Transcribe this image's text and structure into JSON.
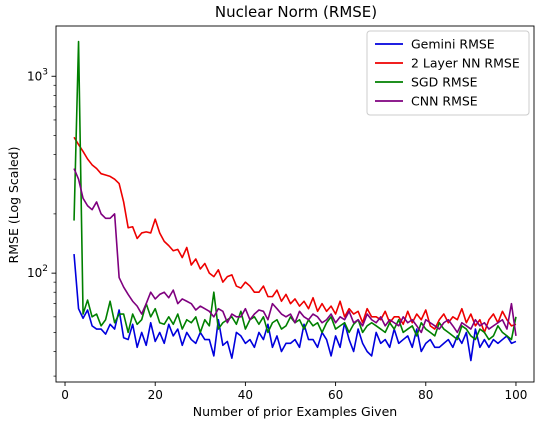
{
  "chart_data": {
    "type": "line",
    "title": "Nuclear Norm (RMSE)",
    "xlabel": "Number of prior Examples Given",
    "ylabel": "RMSE (Log Scaled)",
    "x_scale": "linear",
    "y_scale": "log",
    "xlim": [
      -2,
      104
    ],
    "ylim": [
      28,
      1800
    ],
    "x_ticks": [
      0,
      20,
      40,
      60,
      80,
      100
    ],
    "x_tick_labels": [
      "0",
      "20",
      "40",
      "60",
      "80",
      "100"
    ],
    "y_major_ticks": [
      100,
      1000
    ],
    "y_major_tick_labels": [
      "10",
      "10"
    ],
    "y_major_tick_exponents": [
      "2",
      "3"
    ],
    "y_minor_ticks": [
      30,
      40,
      50,
      60,
      70,
      80,
      90,
      200,
      300,
      400,
      500,
      600,
      700,
      800,
      900
    ],
    "grid": false,
    "legend_position": "top-right",
    "series": [
      {
        "name": "Gemini RMSE",
        "color": "#0000dd",
        "start_x": 2,
        "values": [
          125,
          66,
          59,
          65,
          54,
          52,
          52,
          49,
          55,
          52,
          65,
          47,
          46,
          55,
          42,
          50,
          43,
          56,
          45,
          50,
          44,
          55,
          48,
          52,
          43,
          50,
          46,
          44,
          50,
          46,
          46,
          38,
          58,
          43,
          45,
          37,
          50,
          48,
          44,
          46,
          42,
          50,
          46,
          55,
          42,
          48,
          40,
          44,
          44,
          46,
          42,
          55,
          46,
          46,
          42,
          50,
          46,
          38,
          48,
          42,
          56,
          46,
          40,
          52,
          44,
          40,
          38,
          50,
          44,
          46,
          42,
          52,
          44,
          46,
          48,
          42,
          52,
          40,
          44,
          46,
          42,
          42,
          44,
          46,
          42,
          48,
          44,
          50,
          36,
          52,
          42,
          46,
          42,
          46,
          44,
          46,
          48,
          44,
          45
        ]
      },
      {
        "name": "2 Layer NN RMSE",
        "color": "#ee0000",
        "start_x": 2,
        "values": [
          490,
          450,
          415,
          380,
          355,
          340,
          320,
          315,
          310,
          300,
          285,
          230,
          170,
          172,
          150,
          160,
          162,
          160,
          188,
          160,
          145,
          138,
          130,
          132,
          120,
          135,
          110,
          118,
          105,
          112,
          100,
          96,
          104,
          90,
          96,
          98,
          86,
          84,
          90,
          86,
          80,
          80,
          86,
          76,
          76,
          82,
          72,
          78,
          70,
          74,
          68,
          72,
          66,
          75,
          64,
          70,
          64,
          68,
          62,
          72,
          60,
          66,
          62,
          64,
          56,
          66,
          60,
          60,
          58,
          64,
          56,
          60,
          60,
          55,
          64,
          56,
          62,
          58,
          65,
          54,
          52,
          58,
          62,
          56,
          60,
          58,
          66,
          56,
          62,
          54,
          58,
          50,
          58,
          62,
          56,
          64,
          58,
          54,
          55
        ]
      },
      {
        "name": "SGD RMSE",
        "color": "#008000",
        "start_x": 2,
        "values": [
          185,
          1500,
          62,
          73,
          60,
          62,
          54,
          58,
          72,
          56,
          62,
          62,
          50,
          62,
          55,
          58,
          70,
          60,
          66,
          56,
          55,
          60,
          55,
          62,
          52,
          58,
          56,
          60,
          50,
          58,
          54,
          80,
          52,
          56,
          58,
          60,
          55,
          64,
          52,
          58,
          60,
          55,
          60,
          50,
          56,
          58,
          52,
          54,
          60,
          56,
          58,
          52,
          58,
          54,
          56,
          50,
          56,
          60,
          52,
          54,
          56,
          50,
          55,
          58,
          50,
          54,
          56,
          54,
          52,
          50,
          56,
          52,
          58,
          50,
          52,
          54,
          48,
          56,
          52,
          50,
          48,
          56,
          52,
          50,
          48,
          46,
          54,
          52,
          48,
          46,
          52,
          50,
          46,
          48,
          54,
          50,
          48,
          46,
          60
        ]
      },
      {
        "name": "CNN RMSE",
        "color": "#7f007f",
        "start_x": 2,
        "values": [
          340,
          300,
          240,
          220,
          210,
          230,
          200,
          190,
          190,
          200,
          95,
          85,
          78,
          72,
          68,
          62,
          70,
          80,
          74,
          78,
          80,
          75,
          82,
          70,
          74,
          72,
          70,
          65,
          68,
          66,
          64,
          60,
          66,
          64,
          56,
          62,
          60,
          60,
          66,
          58,
          62,
          65,
          64,
          58,
          70,
          66,
          62,
          60,
          62,
          56,
          64,
          60,
          58,
          62,
          60,
          56,
          58,
          62,
          56,
          60,
          58,
          64,
          56,
          58,
          54,
          62,
          58,
          56,
          60,
          54,
          58,
          56,
          54,
          60,
          56,
          58,
          54,
          50,
          58,
          56,
          54,
          52,
          56,
          58,
          54,
          50,
          56,
          54,
          52,
          58,
          54,
          56,
          52,
          54,
          56,
          58,
          52,
          70,
          48
        ]
      }
    ]
  }
}
